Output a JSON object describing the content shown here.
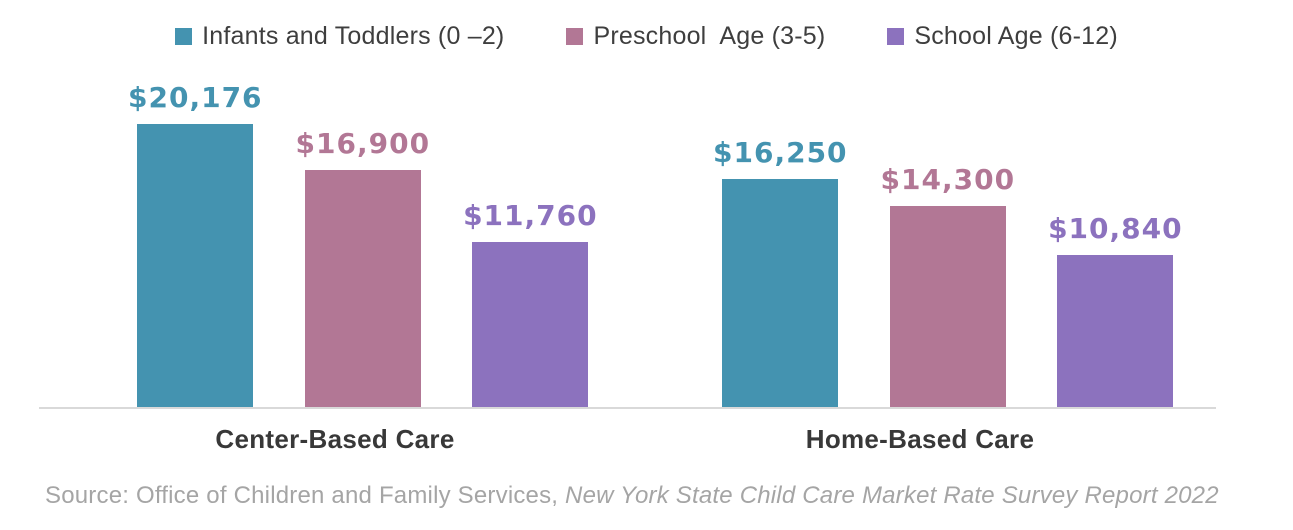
{
  "chart_data": {
    "type": "bar",
    "categories": [
      "Center-Based Care",
      "Home-Based Care"
    ],
    "series": [
      {
        "name": "Infants and Toddlers (0 –2)",
        "color": "#4493b0",
        "values": [
          20176,
          16250
        ],
        "value_labels": [
          "$20,176",
          "$16,250"
        ]
      },
      {
        "name": "Preschool  Age (3-5)",
        "color": "#b27795",
        "values": [
          16900,
          14300
        ],
        "value_labels": [
          "$16,900",
          "$14,300"
        ]
      },
      {
        "name": "School Age (6-12)",
        "color": "#8c72be",
        "values": [
          11760,
          10840
        ],
        "value_labels": [
          "$11,760",
          "$10,840"
        ]
      }
    ],
    "ylim": [
      0,
      20176
    ],
    "grid": false,
    "legend_position": "top",
    "axis_line_color": "#d9d9d9",
    "data_labels_shown": true
  },
  "source": {
    "prefix": "Source: Office of Children and Family Services, ",
    "citation": "New York State Child Care Market Rate Survey Report 2022"
  }
}
